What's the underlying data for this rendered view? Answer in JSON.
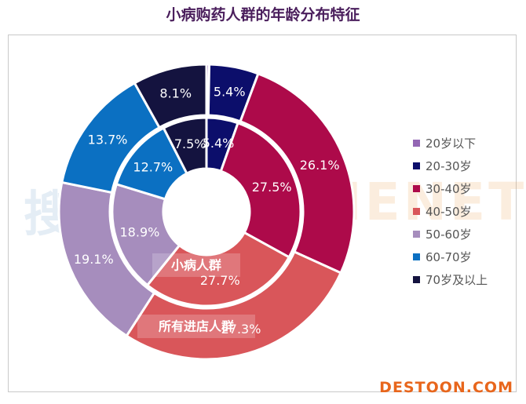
{
  "chart_data": {
    "type": "pie",
    "title": "小病购药人群的年龄分布特征",
    "legend_position": "right",
    "categories": [
      "20岁以下",
      "20-30岁",
      "30-40岁",
      "40-50岁",
      "50-60岁",
      "60-70岁",
      "70岁及以上"
    ],
    "colors": [
      "#9366b4",
      "#0c0e6b",
      "#ad0a4a",
      "#d9565a",
      "#a68dbd",
      "#0b70c2",
      "#14133f"
    ],
    "series": [
      {
        "name": "小病人群",
        "ring": "inner",
        "values": [
          0,
          5.4,
          27.5,
          27.7,
          18.9,
          12.7,
          7.5
        ],
        "labels": [
          "",
          "5.4%",
          "27.5%",
          "27.7%",
          "18.9%",
          "12.7%",
          "7.5%"
        ]
      },
      {
        "name": "所有进店人群",
        "ring": "outer",
        "values": [
          0.3,
          5.4,
          26.1,
          27.3,
          19.1,
          13.7,
          8.1
        ],
        "labels": [
          "",
          "5.4%",
          "26.1%",
          "27.3%",
          "19.1%",
          "13.7%",
          "8.1%"
        ]
      }
    ]
  },
  "watermark": {
    "left": "搜狐",
    "right": "MENET",
    "brand": "DESTOON.COM"
  }
}
